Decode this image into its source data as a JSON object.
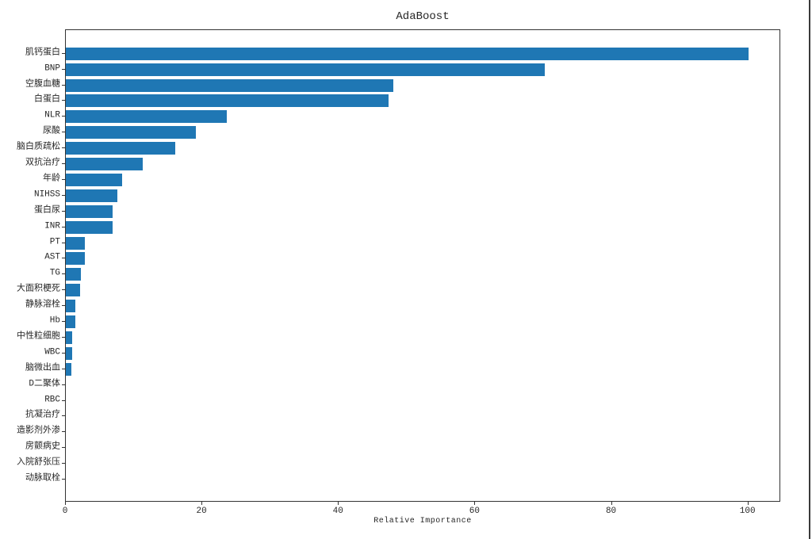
{
  "window": {
    "right_border_color": "#3a3a3a",
    "background_color": "#ffffff"
  },
  "chart_data": {
    "type": "bar",
    "orientation": "horizontal",
    "title": "AdaBoost",
    "xlabel": "Relative Importance",
    "ylabel": "",
    "categories": [
      "肌钙蛋白",
      "BNP",
      "空腹血糖",
      "白蛋白",
      "NLR",
      "尿酸",
      "脑白质疏松",
      "双抗治疗",
      "年龄",
      "NIHSS",
      "蛋白尿",
      "INR",
      "PT",
      "AST",
      "TG",
      "大面积梗死",
      "静脉溶栓",
      "Hb",
      "中性粒细胞",
      "WBC",
      "脑微出血",
      "D二聚体",
      "RBC",
      "抗凝治疗",
      "造影剂外渗",
      "房颤病史",
      "入院舒张压",
      "动脉取栓"
    ],
    "values": [
      100,
      70.2,
      48.0,
      47.3,
      23.6,
      19.0,
      16.0,
      11.3,
      8.2,
      7.6,
      6.8,
      6.8,
      2.8,
      2.8,
      2.2,
      2.1,
      1.4,
      1.4,
      0.9,
      0.9,
      0.8,
      0,
      0,
      0,
      0,
      0,
      0,
      0
    ],
    "xticks": [
      0,
      20,
      40,
      60,
      80,
      100
    ],
    "xlim": [
      0,
      104.8
    ],
    "bar_color": "#1f77b4",
    "axis_color": "#333333",
    "text_color": "#262626",
    "grid": false,
    "legend": false
  }
}
